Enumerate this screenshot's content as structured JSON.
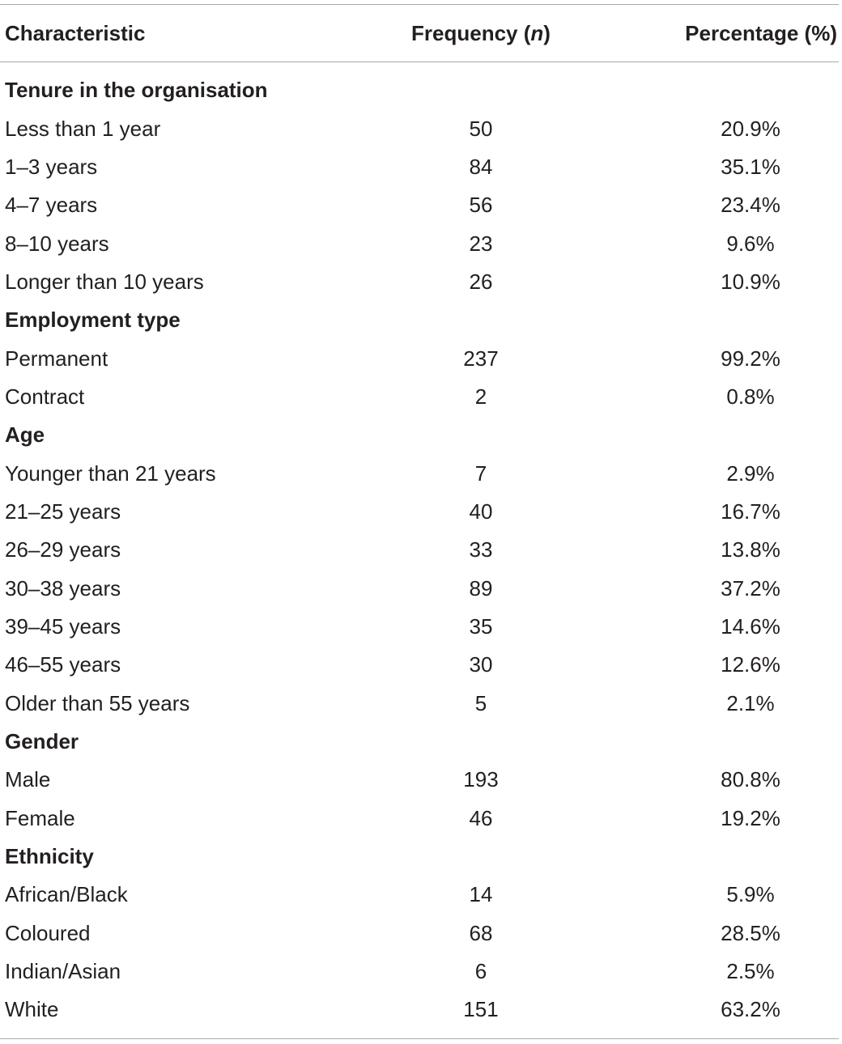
{
  "table": {
    "header": {
      "characteristic": "Characteristic",
      "frequency": {
        "before": "Frequency (",
        "italic": "n",
        "after": ")"
      },
      "percentage": "Percentage (%)"
    },
    "sections": [
      {
        "title": "Tenure in the organisation",
        "rows": [
          [
            "Less than 1 year",
            "50",
            "20.9%"
          ],
          [
            "1–3 years",
            "84",
            "35.1%"
          ],
          [
            "4–7 years",
            "56",
            "23.4%"
          ],
          [
            "8–10 years",
            "23",
            "9.6%"
          ],
          [
            "Longer than 10 years",
            "26",
            "10.9%"
          ]
        ]
      },
      {
        "title": "Employment type",
        "rows": [
          [
            "Permanent",
            "237",
            "99.2%"
          ],
          [
            "Contract",
            "2",
            "0.8%"
          ]
        ]
      },
      {
        "title": "Age",
        "rows": [
          [
            "Younger than 21 years",
            "7",
            "2.9%"
          ],
          [
            "21–25 years",
            "40",
            "16.7%"
          ],
          [
            "26–29 years",
            "33",
            "13.8%"
          ],
          [
            "30–38 years",
            "89",
            "37.2%"
          ],
          [
            "39–45 years",
            "35",
            "14.6%"
          ],
          [
            "46–55 years",
            "30",
            "12.6%"
          ],
          [
            "Older than 55 years",
            "5",
            "2.1%"
          ]
        ]
      },
      {
        "title": "Gender",
        "rows": [
          [
            "Male",
            "193",
            "80.8%"
          ],
          [
            "Female",
            "46",
            "19.2%"
          ]
        ]
      },
      {
        "title": "Ethnicity",
        "rows": [
          [
            "African/Black",
            "14",
            "5.9%"
          ],
          [
            "Coloured",
            "68",
            "28.5%"
          ],
          [
            "Indian/Asian",
            "6",
            "2.5%"
          ],
          [
            "White",
            "151",
            "63.2%"
          ]
        ]
      }
    ]
  }
}
